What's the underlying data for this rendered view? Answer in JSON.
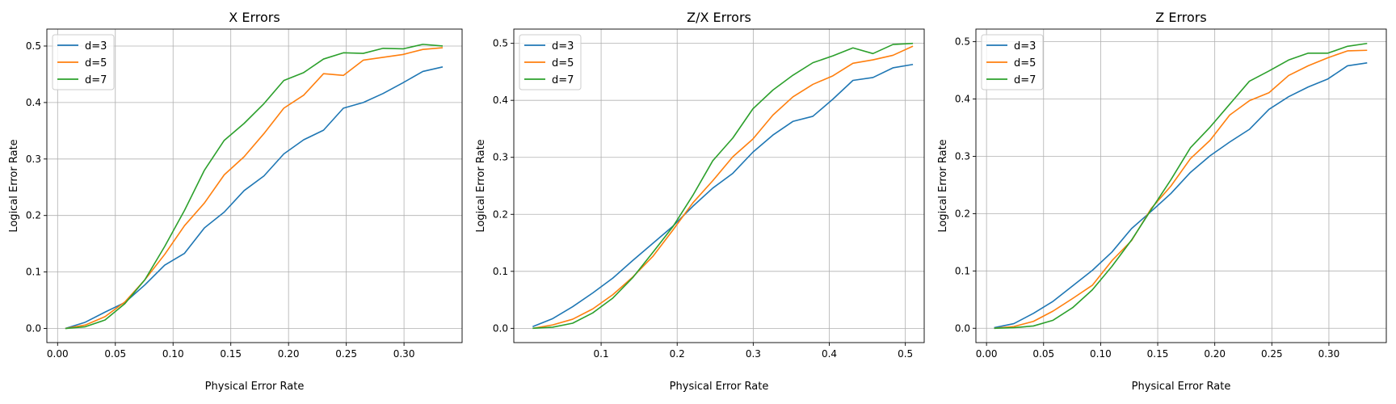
{
  "colors": {
    "d3": "#1f77b4",
    "d5": "#ff7f0e",
    "d7": "#2ca02c",
    "grid": "#b0b0b0"
  },
  "chart_data": [
    {
      "type": "line",
      "title": "X Errors",
      "xlabel": "Physical Error Rate",
      "ylabel": "Logical Error Rate",
      "xlim": [
        -0.0093,
        0.3503
      ],
      "ylim": [
        -0.025,
        0.53
      ],
      "xticks": [
        0.0,
        0.05,
        0.1,
        0.15,
        0.2,
        0.25,
        0.3
      ],
      "xtick_labels": [
        "0.00",
        "0.05",
        "0.10",
        "0.15",
        "0.20",
        "0.25",
        "0.30"
      ],
      "yticks": [
        0.0,
        0.1,
        0.2,
        0.3,
        0.4,
        0.5
      ],
      "ytick_labels": [
        "0.0",
        "0.1",
        "0.2",
        "0.3",
        "0.4",
        "0.5"
      ],
      "grid": true,
      "legend": "upper-left",
      "x": [
        0.0067,
        0.0239,
        0.0411,
        0.0583,
        0.0755,
        0.0927,
        0.1099,
        0.1271,
        0.1443,
        0.1615,
        0.1787,
        0.1959,
        0.2131,
        0.2303,
        0.2475,
        0.2647,
        0.2819,
        0.2991,
        0.3163,
        0.3335
      ],
      "series": [
        {
          "name": "d=3",
          "color": "#1f77b4",
          "values": [
            0.0,
            0.011,
            0.029,
            0.046,
            0.077,
            0.112,
            0.133,
            0.178,
            0.206,
            0.244,
            0.27,
            0.309,
            0.334,
            0.351,
            0.39,
            0.4,
            0.416,
            0.435,
            0.455,
            0.463
          ]
        },
        {
          "name": "d=5",
          "color": "#ff7f0e",
          "values": [
            0.0,
            0.006,
            0.021,
            0.047,
            0.086,
            0.131,
            0.182,
            0.222,
            0.272,
            0.304,
            0.345,
            0.39,
            0.413,
            0.451,
            0.448,
            0.475,
            0.48,
            0.485,
            0.494,
            0.497
          ]
        },
        {
          "name": "d=7",
          "color": "#2ca02c",
          "values": [
            0.0,
            0.003,
            0.015,
            0.044,
            0.086,
            0.145,
            0.209,
            0.28,
            0.333,
            0.363,
            0.398,
            0.439,
            0.453,
            0.477,
            0.488,
            0.487,
            0.496,
            0.495,
            0.503,
            0.5
          ]
        }
      ]
    },
    {
      "type": "line",
      "title": "Z/X Errors",
      "xlabel": "Physical Error Rate",
      "ylabel": "Logical Error Rate",
      "xlim": [
        -0.0148,
        0.5248
      ],
      "ylim": [
        -0.025,
        0.525
      ],
      "xticks": [
        0.1,
        0.2,
        0.3,
        0.4,
        0.5
      ],
      "xtick_labels": [
        "0.1",
        "0.2",
        "0.3",
        "0.4",
        "0.5"
      ],
      "yticks": [
        0.0,
        0.1,
        0.2,
        0.3,
        0.4,
        0.5
      ],
      "ytick_labels": [
        "0.0",
        "0.1",
        "0.2",
        "0.3",
        "0.4",
        "0.5"
      ],
      "grid": true,
      "legend": "upper-left",
      "x": [
        0.01,
        0.0363,
        0.0626,
        0.0889,
        0.1153,
        0.1416,
        0.1679,
        0.1942,
        0.2205,
        0.2468,
        0.2732,
        0.2995,
        0.3258,
        0.3521,
        0.3784,
        0.4047,
        0.4311,
        0.4574,
        0.4837,
        0.51
      ],
      "series": [
        {
          "name": "d=3",
          "color": "#1f77b4",
          "values": [
            0.003,
            0.017,
            0.038,
            0.062,
            0.088,
            0.119,
            0.149,
            0.179,
            0.214,
            0.246,
            0.272,
            0.309,
            0.339,
            0.363,
            0.372,
            0.402,
            0.435,
            0.44,
            0.457,
            0.463
          ]
        },
        {
          "name": "d=5",
          "color": "#ff7f0e",
          "values": [
            0.0,
            0.006,
            0.016,
            0.034,
            0.059,
            0.09,
            0.126,
            0.172,
            0.22,
            0.259,
            0.301,
            0.332,
            0.374,
            0.406,
            0.428,
            0.443,
            0.465,
            0.471,
            0.479,
            0.495
          ]
        },
        {
          "name": "d=7",
          "color": "#2ca02c",
          "values": [
            0.0,
            0.002,
            0.009,
            0.027,
            0.053,
            0.089,
            0.133,
            0.178,
            0.233,
            0.294,
            0.334,
            0.385,
            0.418,
            0.444,
            0.466,
            0.478,
            0.492,
            0.482,
            0.498,
            0.5
          ]
        }
      ]
    },
    {
      "type": "line",
      "title": "Z Errors",
      "xlabel": "Physical Error Rate",
      "ylabel": "Logical Error Rate",
      "xlim": [
        -0.0093,
        0.3503
      ],
      "ylim": [
        -0.025,
        0.522
      ],
      "xticks": [
        0.0,
        0.05,
        0.1,
        0.15,
        0.2,
        0.25,
        0.3
      ],
      "xtick_labels": [
        "0.00",
        "0.05",
        "0.10",
        "0.15",
        "0.20",
        "0.25",
        "0.30"
      ],
      "yticks": [
        0.0,
        0.1,
        0.2,
        0.3,
        0.4,
        0.5
      ],
      "ytick_labels": [
        "0.0",
        "0.1",
        "0.2",
        "0.3",
        "0.4",
        "0.5"
      ],
      "grid": true,
      "legend": "upper-left",
      "x": [
        0.0067,
        0.0239,
        0.0411,
        0.0583,
        0.0755,
        0.0927,
        0.1099,
        0.1271,
        0.1443,
        0.1615,
        0.1787,
        0.1959,
        0.2131,
        0.2303,
        0.2475,
        0.2647,
        0.2819,
        0.2991,
        0.3163,
        0.3335
      ],
      "series": [
        {
          "name": "d=3",
          "color": "#1f77b4",
          "values": [
            0.001,
            0.008,
            0.026,
            0.047,
            0.074,
            0.101,
            0.133,
            0.174,
            0.204,
            0.235,
            0.272,
            0.301,
            0.325,
            0.347,
            0.382,
            0.404,
            0.421,
            0.435,
            0.458,
            0.463
          ]
        },
        {
          "name": "d=5",
          "color": "#ff7f0e",
          "values": [
            0.0,
            0.003,
            0.012,
            0.03,
            0.052,
            0.075,
            0.118,
            0.153,
            0.209,
            0.248,
            0.296,
            0.328,
            0.372,
            0.397,
            0.411,
            0.441,
            0.458,
            0.472,
            0.484,
            0.485
          ]
        },
        {
          "name": "d=7",
          "color": "#2ca02c",
          "values": [
            0.0,
            0.001,
            0.004,
            0.014,
            0.036,
            0.067,
            0.108,
            0.154,
            0.207,
            0.259,
            0.315,
            0.351,
            0.391,
            0.431,
            0.449,
            0.468,
            0.48,
            0.48,
            0.492,
            0.497
          ]
        }
      ]
    }
  ]
}
